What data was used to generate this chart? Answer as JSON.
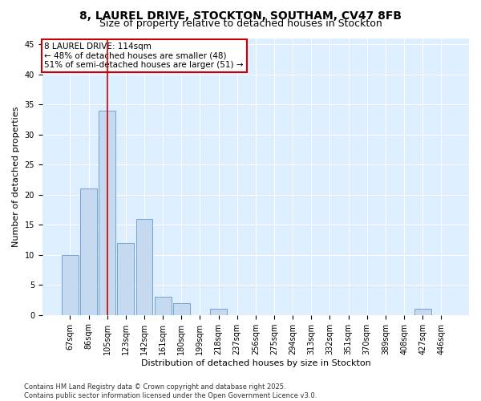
{
  "title_line1": "8, LAUREL DRIVE, STOCKTON, SOUTHAM, CV47 8FB",
  "title_line2": "Size of property relative to detached houses in Stockton",
  "xlabel": "Distribution of detached houses by size in Stockton",
  "ylabel": "Number of detached properties",
  "categories": [
    "67sqm",
    "86sqm",
    "105sqm",
    "123sqm",
    "142sqm",
    "161sqm",
    "180sqm",
    "199sqm",
    "218sqm",
    "237sqm",
    "256sqm",
    "275sqm",
    "294sqm",
    "313sqm",
    "332sqm",
    "351sqm",
    "370sqm",
    "389sqm",
    "408sqm",
    "427sqm",
    "446sqm"
  ],
  "values": [
    10,
    21,
    34,
    12,
    16,
    3,
    2,
    0,
    1,
    0,
    0,
    0,
    0,
    0,
    0,
    0,
    0,
    0,
    0,
    1,
    0
  ],
  "bar_color": "#c5d9f0",
  "bar_edge_color": "#6699cc",
  "vline_x": 2,
  "vline_color": "#cc0000",
  "annotation_text": "8 LAUREL DRIVE: 114sqm\n← 48% of detached houses are smaller (48)\n51% of semi-detached houses are larger (51) →",
  "annotation_box_color": "#ffffff",
  "annotation_box_edge": "#cc0000",
  "ylim": [
    0,
    46
  ],
  "yticks": [
    0,
    5,
    10,
    15,
    20,
    25,
    30,
    35,
    40,
    45
  ],
  "fig_bg_color": "#ffffff",
  "plot_bg_color": "#ddeeff",
  "grid_color": "#ffffff",
  "footer_line1": "Contains HM Land Registry data © Crown copyright and database right 2025.",
  "footer_line2": "Contains public sector information licensed under the Open Government Licence v3.0.",
  "title_fontsize": 10,
  "subtitle_fontsize": 9,
  "axis_label_fontsize": 8,
  "tick_fontsize": 7,
  "annotation_fontsize": 7.5,
  "footer_fontsize": 6
}
